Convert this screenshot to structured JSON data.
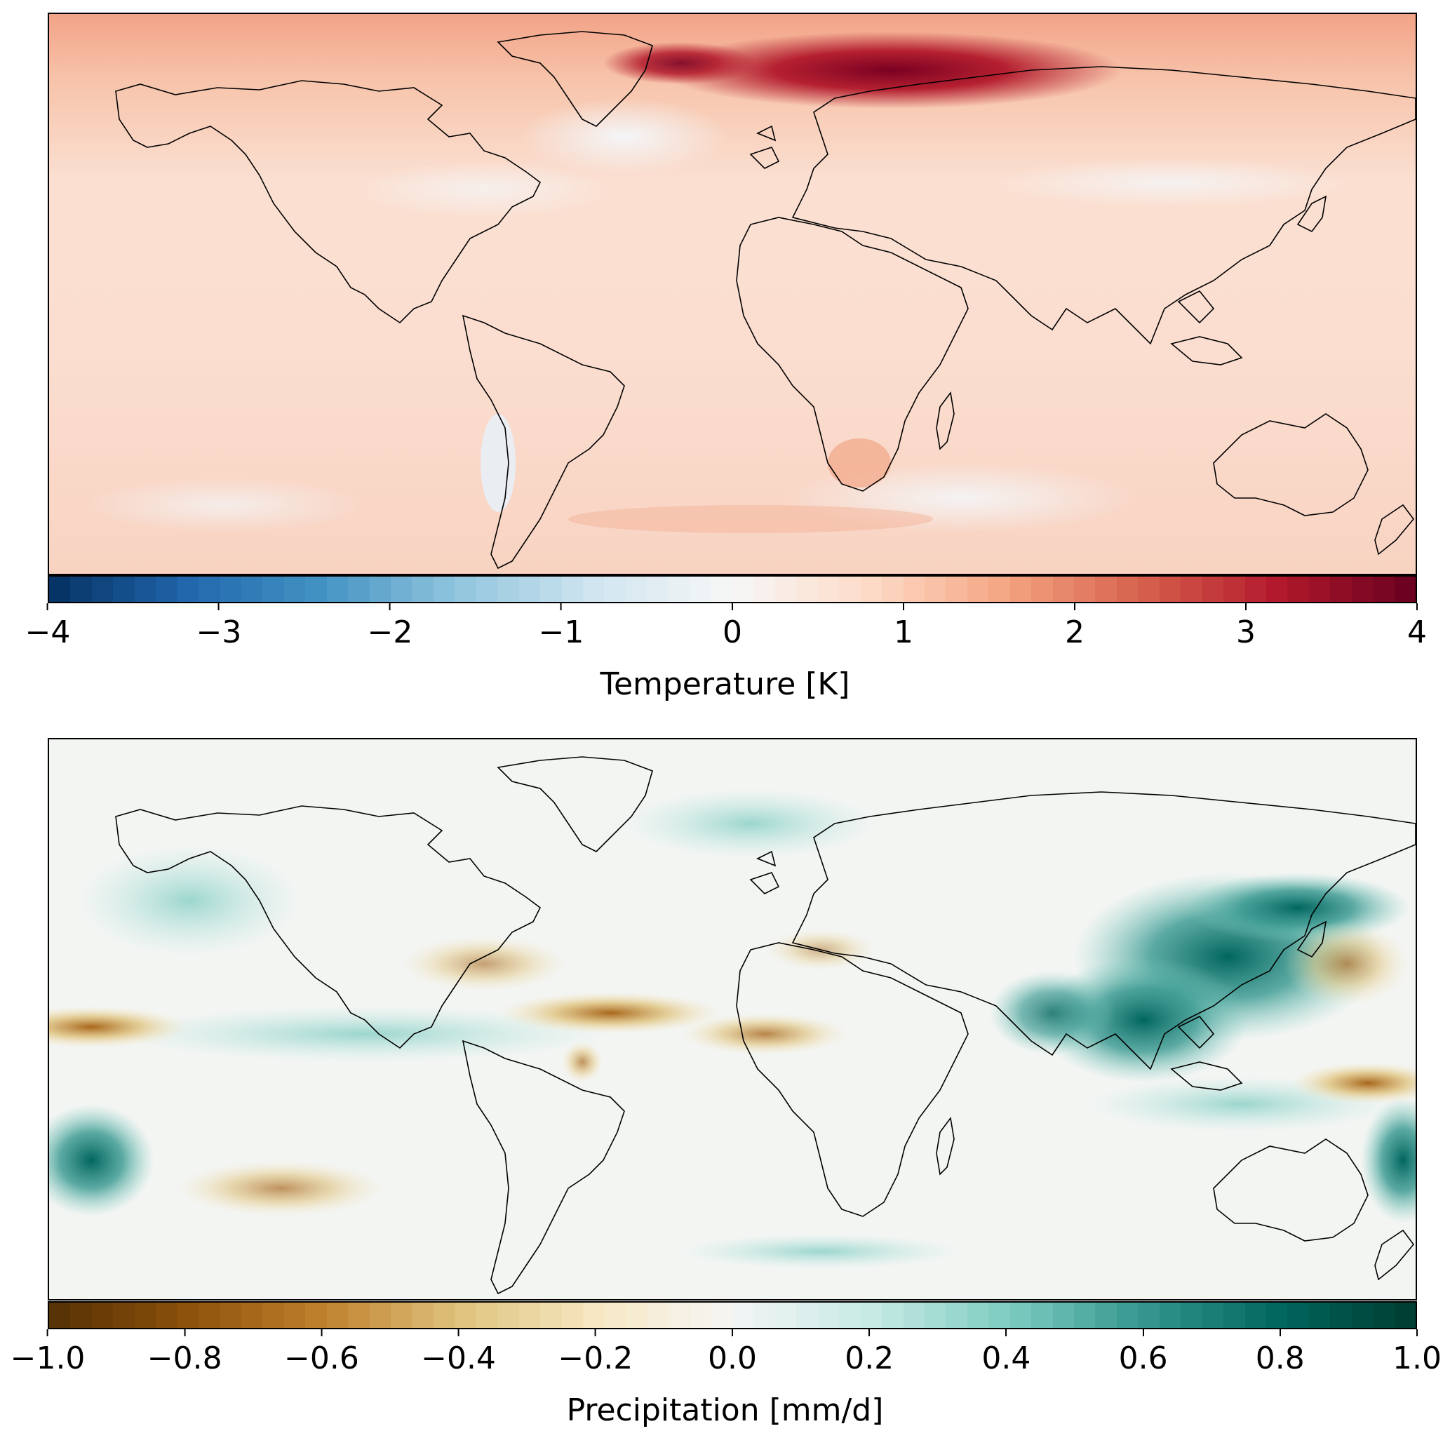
{
  "panels": [
    {
      "id": "temperature",
      "colorbar_label": "Temperature [K]",
      "ticks": [
        "−4",
        "−3",
        "−2",
        "−1",
        "0",
        "1",
        "2",
        "3",
        "4"
      ],
      "range": [
        -4,
        4
      ],
      "colormap": "RdBu_r",
      "colors_low_to_high": [
        "#053061",
        "#2166ac",
        "#4393c3",
        "#92c5de",
        "#d1e5f0",
        "#f7f7f7",
        "#fddbc7",
        "#f4a582",
        "#d6604d",
        "#b2182b",
        "#67001f"
      ]
    },
    {
      "id": "precipitation",
      "colorbar_label": "Precipitation [mm/d]",
      "ticks": [
        "−1.0",
        "−0.8",
        "−0.6",
        "−0.4",
        "−0.2",
        "0.0",
        "0.2",
        "0.4",
        "0.6",
        "0.8",
        "1.0"
      ],
      "range": [
        -1.0,
        1.0
      ],
      "colormap": "BrBG",
      "colors_low_to_high": [
        "#543005",
        "#8c510a",
        "#bf812d",
        "#dfc27d",
        "#f6e8c3",
        "#f5f5f5",
        "#c7eae5",
        "#80cdc1",
        "#35978f",
        "#01665e",
        "#003c30"
      ]
    }
  ]
}
